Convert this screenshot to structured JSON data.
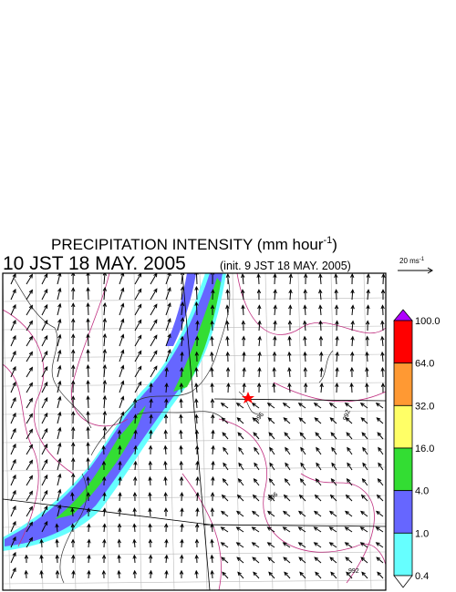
{
  "title": {
    "main": "PRECIPITATION INTENSITY (mm hour",
    "superscript": "-1",
    "close": ")"
  },
  "subtitle": {
    "valid_time": "10 JST 18 MAY. 2005",
    "init_time": "(init. 9 JST 18 MAY. 2005)"
  },
  "vector_key": {
    "label": "20 ms",
    "superscript": "-1"
  },
  "colorbar": {
    "labels": [
      "100.0",
      "64.0",
      "32.0",
      "16.0",
      "4.0",
      "1.0",
      "0.4"
    ],
    "colors": [
      "#ff0000",
      "#ff9933",
      "#ffff66",
      "#33dd33",
      "#6666ff",
      "#66ffff"
    ],
    "over_color": "#b000ff",
    "under_color": "#ffffff"
  },
  "contour_labels": [
    "996",
    "992",
    "996",
    "992"
  ]
}
